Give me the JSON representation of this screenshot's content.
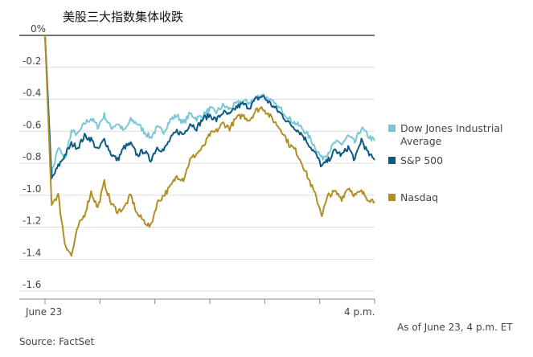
{
  "chart_data": {
    "type": "line",
    "title": "美股三大指数集体收跌",
    "y_ticks": [
      "0%",
      "-0.2",
      "-0.4",
      "-0.6",
      "-0.8",
      "-1.0",
      "-1.2",
      "-1.4",
      "-1.6"
    ],
    "y_tick_values": [
      0,
      -0.2,
      -0.4,
      -0.6,
      -0.8,
      -1.0,
      -1.2,
      -1.4,
      -1.6
    ],
    "ylim": [
      -1.6,
      0
    ],
    "x_labels": [
      "June 23",
      "4 p.m."
    ],
    "grid": true,
    "legend_position": "right",
    "series": [
      {
        "name": "Dow Jones Industrial Average",
        "color": "#79c7d6",
        "values": [
          0,
          -0.87,
          -0.7,
          -0.78,
          -0.6,
          -0.62,
          -0.55,
          -0.52,
          -0.57,
          -0.5,
          -0.58,
          -0.55,
          -0.6,
          -0.53,
          -0.55,
          -0.6,
          -0.64,
          -0.58,
          -0.6,
          -0.53,
          -0.5,
          -0.55,
          -0.49,
          -0.52,
          -0.5,
          -0.46,
          -0.48,
          -0.44,
          -0.46,
          -0.43,
          -0.41,
          -0.42,
          -0.39,
          -0.37,
          -0.4,
          -0.44,
          -0.47,
          -0.52,
          -0.55,
          -0.58,
          -0.63,
          -0.7,
          -0.77,
          -0.73,
          -0.67,
          -0.68,
          -0.63,
          -0.67,
          -0.58,
          -0.63,
          -0.66
        ]
      },
      {
        "name": "S&P 500",
        "color": "#0d5a82",
        "values": [
          0,
          -0.9,
          -0.82,
          -0.75,
          -0.68,
          -0.7,
          -0.63,
          -0.65,
          -0.72,
          -0.65,
          -0.74,
          -0.78,
          -0.7,
          -0.68,
          -0.75,
          -0.72,
          -0.78,
          -0.7,
          -0.72,
          -0.65,
          -0.6,
          -0.62,
          -0.55,
          -0.58,
          -0.52,
          -0.5,
          -0.53,
          -0.48,
          -0.5,
          -0.45,
          -0.43,
          -0.45,
          -0.4,
          -0.38,
          -0.42,
          -0.46,
          -0.5,
          -0.55,
          -0.58,
          -0.62,
          -0.68,
          -0.74,
          -0.82,
          -0.78,
          -0.72,
          -0.75,
          -0.7,
          -0.78,
          -0.65,
          -0.74,
          -0.78
        ]
      },
      {
        "name": "Nasdaq",
        "color": "#b38e25",
        "values": [
          0,
          -1.05,
          -1.0,
          -1.3,
          -1.38,
          -1.2,
          -1.12,
          -0.98,
          -1.08,
          -0.92,
          -1.05,
          -1.1,
          -1.08,
          -1.0,
          -1.12,
          -1.16,
          -1.2,
          -1.05,
          -1.0,
          -0.95,
          -0.88,
          -0.9,
          -0.78,
          -0.74,
          -0.7,
          -0.62,
          -0.6,
          -0.55,
          -0.58,
          -0.52,
          -0.5,
          -0.53,
          -0.47,
          -0.45,
          -0.5,
          -0.55,
          -0.6,
          -0.68,
          -0.72,
          -0.8,
          -0.9,
          -1.0,
          -1.12,
          -1.0,
          -0.98,
          -1.02,
          -0.95,
          -1.0,
          -0.98,
          -1.02,
          -1.04
        ]
      }
    ]
  },
  "legend": [
    {
      "label": "Dow Jones Industrial Average",
      "color": "#79c7d6"
    },
    {
      "label": "S&P 500",
      "color": "#0d5a82"
    },
    {
      "label": "Nasdaq",
      "color": "#b38e25"
    }
  ],
  "footer": {
    "as_of": "As of June 23, 4 p.m. ET",
    "source": "Source: FactSet"
  }
}
